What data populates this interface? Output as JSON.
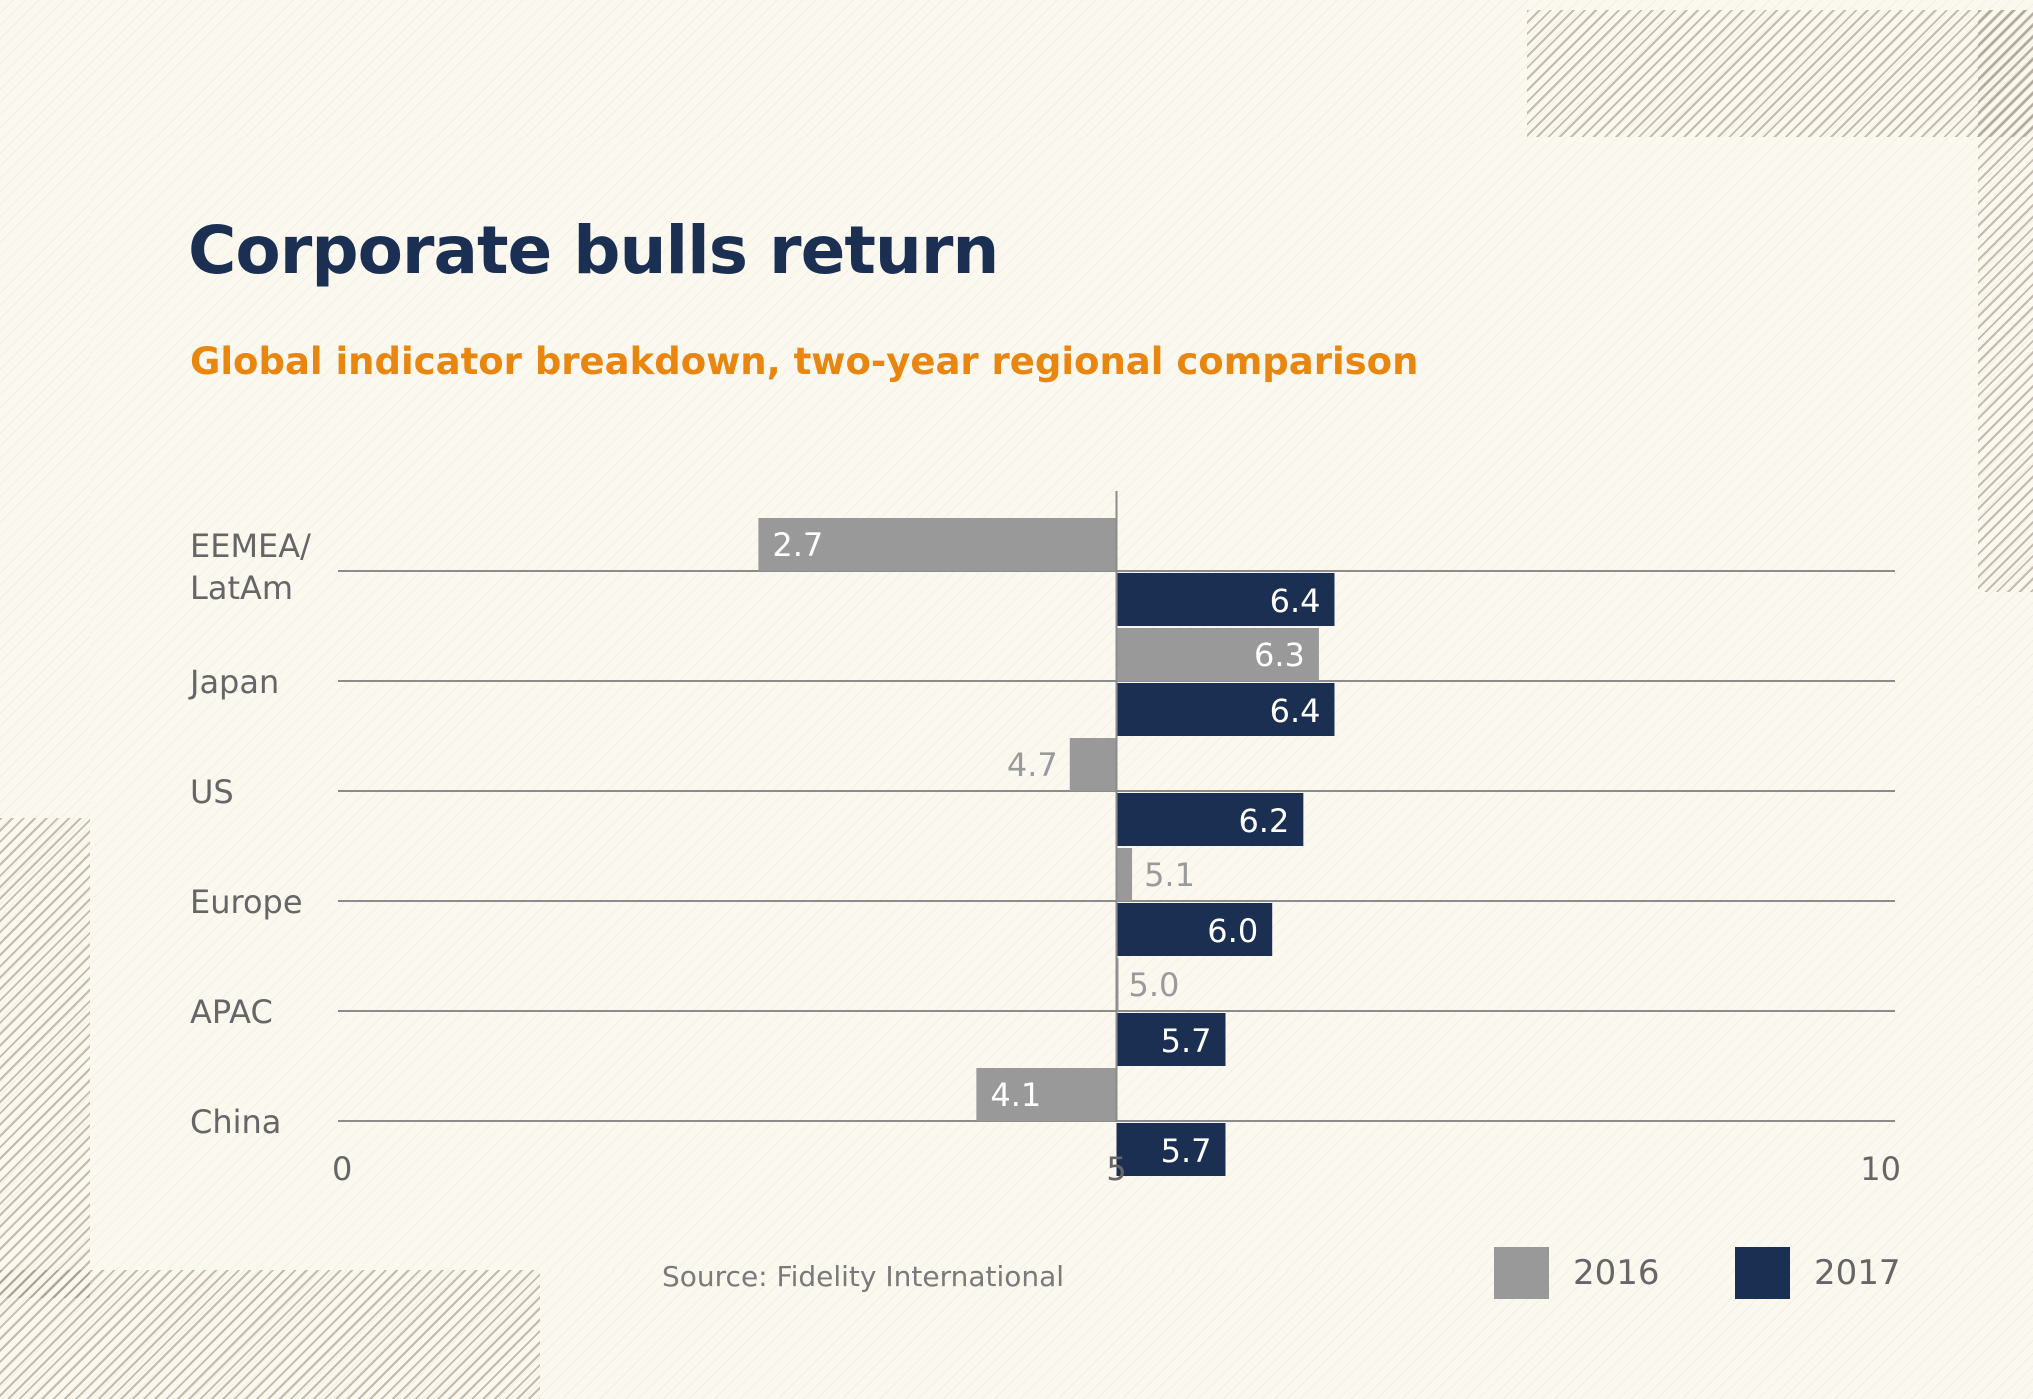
{
  "title": "Corporate bulls return",
  "subtitle": "Global indicator breakdown, two-year regional comparison",
  "source": "Source: Fidelity International",
  "colors": {
    "s2016": "#999999",
    "s2017": "#1a2f52",
    "title": "#1a2f52",
    "subtitle": "#e8860f",
    "axis": "#8c8c8c"
  },
  "legend": [
    {
      "label": "2016",
      "color": "#999999"
    },
    {
      "label": "2017",
      "color": "#1a2f52"
    }
  ],
  "chart_data": {
    "type": "bar",
    "orientation": "horizontal",
    "baseline": 5,
    "xlim": [
      0,
      10
    ],
    "xticks": [
      "0",
      "5",
      "10"
    ],
    "categories": [
      {
        "lines": [
          "EEMEA/",
          "LatAm"
        ]
      },
      {
        "lines": [
          "Japan"
        ]
      },
      {
        "lines": [
          "US"
        ]
      },
      {
        "lines": [
          "Europe"
        ]
      },
      {
        "lines": [
          "APAC"
        ]
      },
      {
        "lines": [
          "China"
        ]
      }
    ],
    "series": [
      {
        "name": "2016",
        "color": "#999999",
        "values": [
          2.7,
          6.3,
          4.7,
          5.1,
          5.0,
          4.1
        ],
        "labels": [
          "2.7",
          "6.3",
          "4.7",
          "5.1",
          "5.0",
          "4.1"
        ]
      },
      {
        "name": "2017",
        "color": "#1a2f52",
        "values": [
          6.4,
          6.4,
          6.2,
          6.0,
          5.7,
          5.7
        ],
        "labels": [
          "6.4",
          "6.4",
          "6.2",
          "6.0",
          "5.7",
          "5.7"
        ]
      }
    ],
    "legend_position": "bottom-right"
  }
}
